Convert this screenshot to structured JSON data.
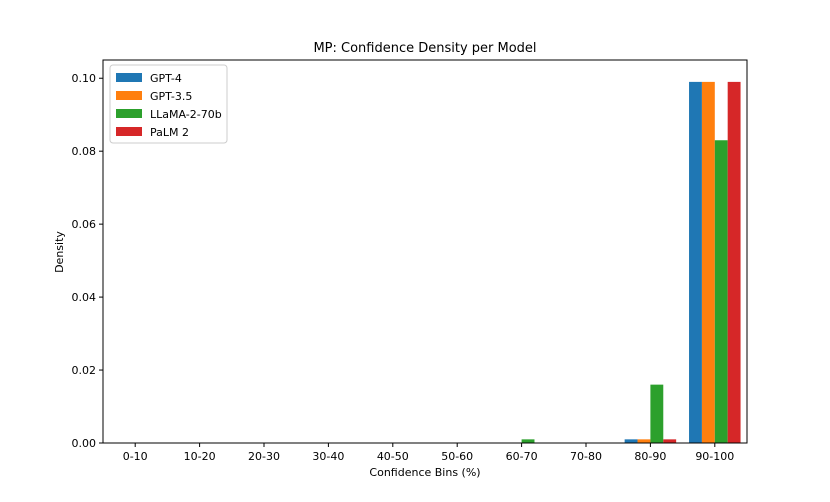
{
  "chart_data": {
    "type": "bar",
    "title": "MP: Confidence Density per Model",
    "xlabel": "Confidence Bins (%)",
    "ylabel": "Density",
    "categories": [
      "0-10",
      "10-20",
      "20-30",
      "30-40",
      "40-50",
      "50-60",
      "60-70",
      "70-80",
      "80-90",
      "90-100"
    ],
    "ylim": [
      0,
      0.105
    ],
    "yticks": [
      "0.00",
      "0.02",
      "0.04",
      "0.06",
      "0.08",
      "0.10"
    ],
    "legend_position": "top-left",
    "grid": false,
    "series": [
      {
        "name": "GPT-4",
        "color": "#1f77b4",
        "values": [
          0,
          0,
          0,
          0,
          0,
          0,
          0,
          0,
          0.001,
          0.099
        ]
      },
      {
        "name": "GPT-3.5",
        "color": "#ff7f0e",
        "values": [
          0,
          0,
          0,
          0,
          0,
          0,
          0,
          0,
          0.001,
          0.099
        ]
      },
      {
        "name": "LLaMA-2-70b",
        "color": "#2ca02c",
        "values": [
          0,
          0,
          0,
          0,
          0,
          0,
          0.001,
          0,
          0.016,
          0.083
        ]
      },
      {
        "name": "PaLM 2",
        "color": "#d62728",
        "values": [
          0,
          0,
          0,
          0,
          0,
          0,
          0,
          0,
          0.001,
          0.099
        ]
      }
    ]
  }
}
